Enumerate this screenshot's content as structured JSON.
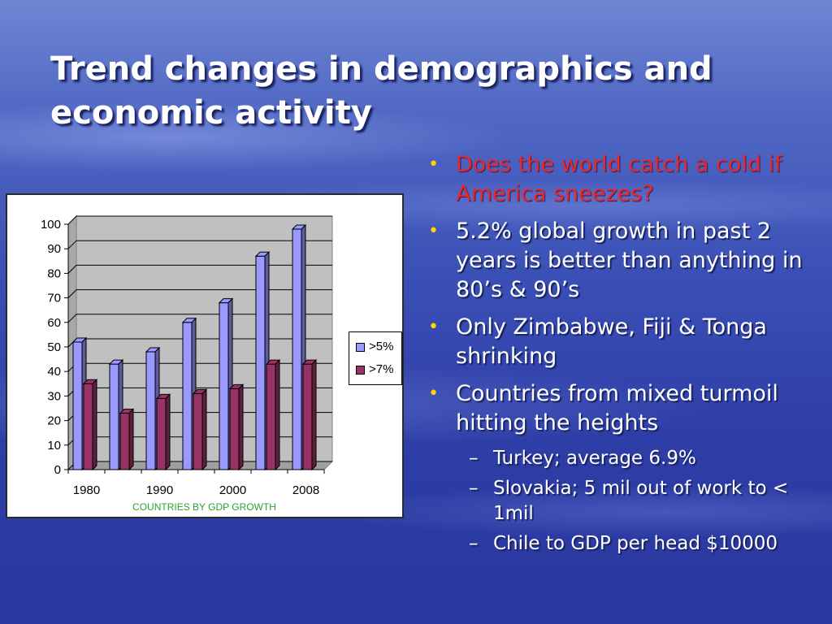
{
  "slide": {
    "title": "Trend changes in demographics and economic activity"
  },
  "bullets": [
    {
      "text": "Does the world catch a cold if America sneezes?",
      "level": 1,
      "color": "#e8282a"
    },
    {
      "text": "5.2% global growth in past 2 years is better than anything in 80’s & 90’s",
      "level": 1
    },
    {
      "text": "Only Zimbabwe, Fiji & Tonga shrinking",
      "level": 1
    },
    {
      "text": "Countries from mixed turmoil hitting the heights",
      "level": 1
    },
    {
      "text": "Turkey; average 6.9%",
      "level": 2
    },
    {
      "text": "Slovakia; 5 mil out of work to < 1mil",
      "level": 2
    },
    {
      "text": "Chile to GDP per head $10000",
      "level": 2
    }
  ],
  "bullet_marker": "•",
  "sub_bullet_marker": "–",
  "chart_data": {
    "type": "bar",
    "style": "3d-clustered-column",
    "title": "",
    "xlabel": "COUNTRIES BY GDP GROWTH",
    "xlabel_color": "#2ea02e",
    "ylabel": "",
    "ylim": [
      0,
      100
    ],
    "yticks": [
      0,
      10,
      20,
      30,
      40,
      50,
      60,
      70,
      80,
      90,
      100
    ],
    "categories": [
      "1980",
      "",
      "1990",
      "",
      "2000",
      "",
      "2008"
    ],
    "x_tick_labels": [
      "1980",
      "1990",
      "2000",
      "2008"
    ],
    "series": [
      {
        "name": ">5%",
        "color": "#9999ff",
        "values": [
          52,
          43,
          48,
          60,
          68,
          87,
          98
        ]
      },
      {
        "name": ">7%",
        "color": "#993366",
        "values": [
          35,
          23,
          29,
          31,
          33,
          43,
          43
        ]
      }
    ],
    "grid": true,
    "legend": "right"
  }
}
